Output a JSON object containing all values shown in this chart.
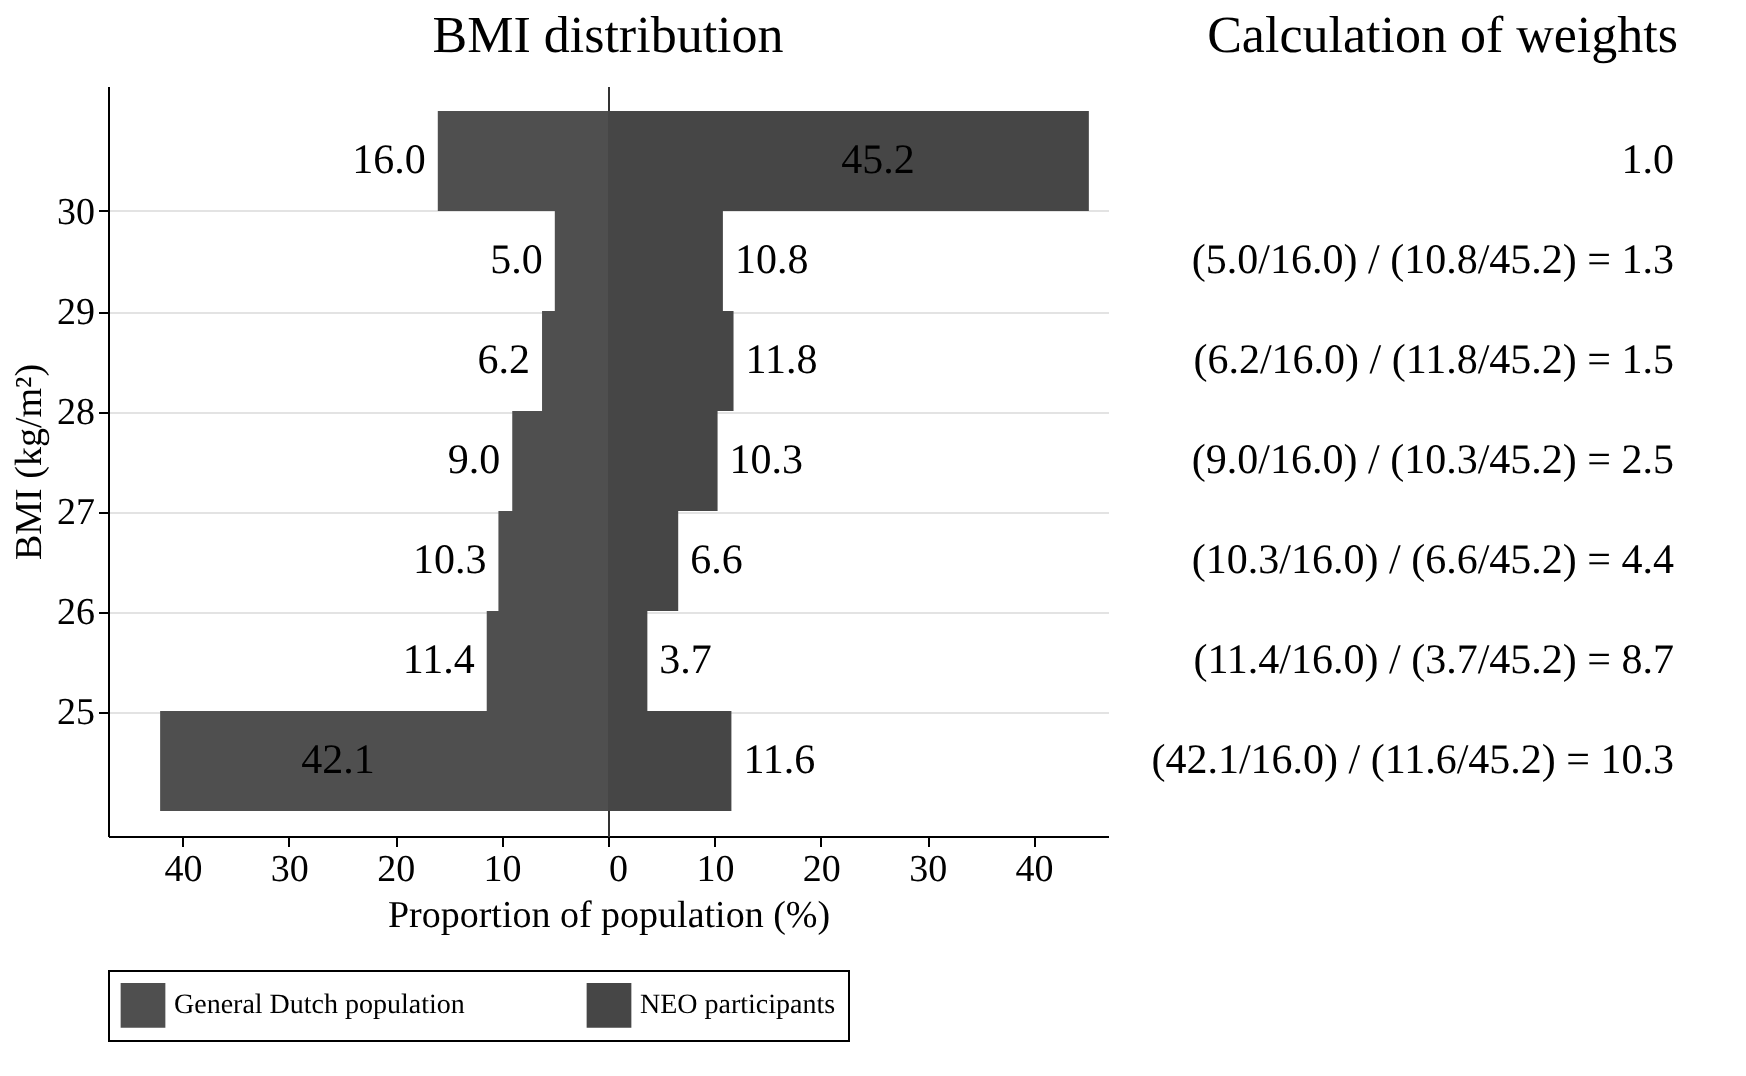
{
  "chart_data": [
    {
      "type": "histogram",
      "orientation": "horizontal",
      "ylabel": "BMI (kg/m²)",
      "bins": [
        24,
        25,
        26,
        27,
        28,
        29,
        30,
        31
      ],
      "series": [
        {
          "name": "General Dutch population",
          "color": "#4f4f4f",
          "values": [
            42.1,
            11.4,
            10.3,
            9.0,
            6.2,
            5.0,
            16.0
          ],
          "value_labels": [
            "42.1",
            "11.4",
            "10.3",
            "9.0",
            "6.2",
            "5.0",
            "16.0"
          ]
        }
      ],
      "xlim": [
        47,
        0
      ],
      "xticks": [
        40,
        30,
        20,
        10
      ],
      "ylim": [
        23.75,
        31.25
      ],
      "yticks": [
        25,
        26,
        27,
        28,
        29,
        30
      ],
      "grid": "y",
      "legend": "bottom"
    },
    {
      "type": "histogram",
      "orientation": "horizontal",
      "title": "BMI distribution",
      "xlabel": "Proportion of population (%)",
      "bins": [
        24,
        25,
        26,
        27,
        28,
        29,
        30,
        31
      ],
      "series": [
        {
          "name": "NEO participants",
          "color": "#464646",
          "values": [
            11.6,
            3.7,
            6.6,
            10.3,
            11.8,
            10.8,
            45.2
          ],
          "value_labels": [
            "11.6",
            "3.7",
            "6.6",
            "10.3",
            "11.8",
            "10.8",
            "45.2"
          ]
        }
      ],
      "xlim": [
        0,
        47
      ],
      "xticks": [
        0,
        10,
        20,
        30,
        40
      ],
      "ylim": [
        23.75,
        31.25
      ],
      "yticks": [
        25,
        26,
        27,
        28,
        29,
        30
      ],
      "grid": "y",
      "legend": "bottom",
      "tick_labels": "x"
    },
    {
      "type": "other",
      "title": "Calculation of weights",
      "annotations": [
        "1.0",
        "(5.0/16.0) / (10.8/45.2)   =   1.3",
        "(6.2/16.0) / (11.8/45.2)   =   1.5",
        "(9.0/16.0) / (10.3/45.2)   =   2.5",
        "(10.3/16.0) / (6.6/45.2)   =   4.4",
        "(11.4/16.0) / (3.7/45.2)   =   8.7",
        "(42.1/16.0) / (11.6/45.2) = 10.3"
      ]
    }
  ]
}
